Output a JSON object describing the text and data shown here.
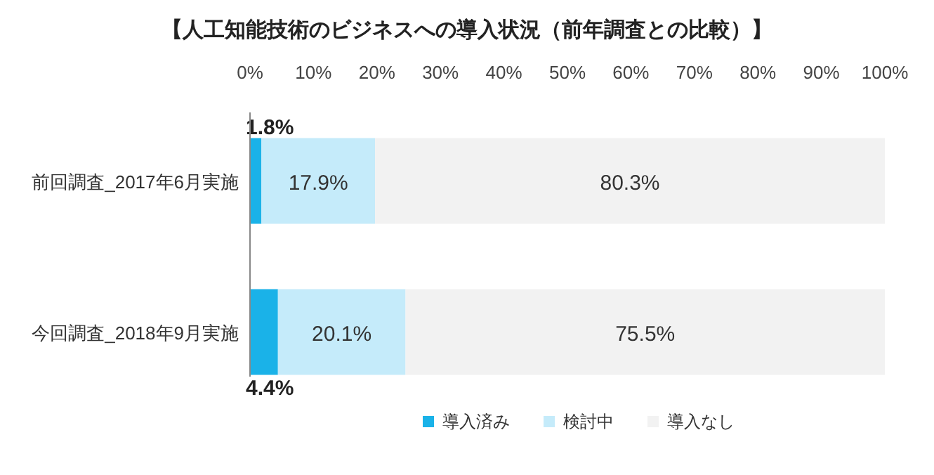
{
  "chart_data": {
    "type": "bar",
    "orientation": "horizontal",
    "stacked": true,
    "title": "【人工知能技術のビジネスへの導入状況（前年調査との比較）】",
    "categories": [
      "前回調査_2017年6月実施",
      "今回調査_2018年9月実施"
    ],
    "series": [
      {
        "name": "導入済み",
        "color": "#1ab2e8",
        "values": [
          1.8,
          4.4
        ],
        "value_labels": [
          "1.8%",
          "4.4%"
        ]
      },
      {
        "name": "検討中",
        "color": "#c5ebfa",
        "values": [
          17.9,
          20.1
        ],
        "value_labels": [
          "17.9%",
          "20.1%"
        ]
      },
      {
        "name": "導入なし",
        "color": "#f2f2f2",
        "values": [
          80.3,
          75.5
        ],
        "value_labels": [
          "80.3%",
          "75.5%"
        ]
      }
    ],
    "xlim": [
      0,
      100
    ],
    "xticks": [
      {
        "value": 0,
        "label": "0%"
      },
      {
        "value": 10,
        "label": "10%"
      },
      {
        "value": 20,
        "label": "20%"
      },
      {
        "value": 30,
        "label": "30%"
      },
      {
        "value": 40,
        "label": "40%"
      },
      {
        "value": 50,
        "label": "50%"
      },
      {
        "value": 60,
        "label": "60%"
      },
      {
        "value": 70,
        "label": "70%"
      },
      {
        "value": 80,
        "label": "80%"
      },
      {
        "value": 90,
        "label": "90%"
      },
      {
        "value": 100,
        "label": "100%"
      }
    ],
    "legend": "bottom"
  }
}
